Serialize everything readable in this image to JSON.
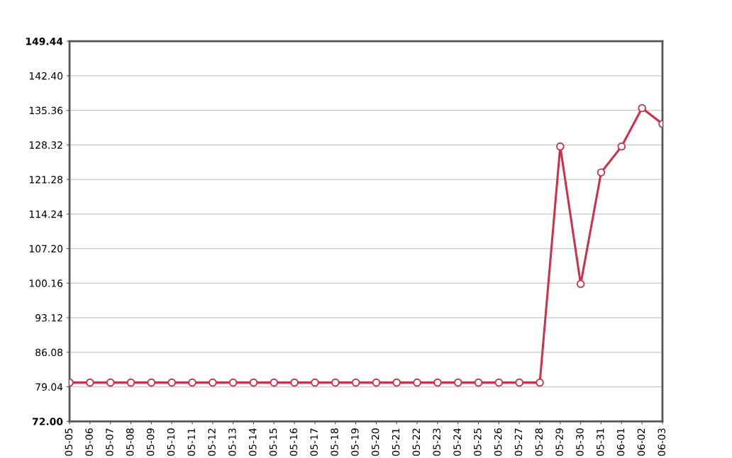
{
  "chart_data": {
    "type": "line",
    "categories": [
      "05-05",
      "05-06",
      "05-07",
      "05-08",
      "05-09",
      "05-10",
      "05-11",
      "05-12",
      "05-13",
      "05-14",
      "05-15",
      "05-16",
      "05-17",
      "05-18",
      "05-19",
      "05-20",
      "05-21",
      "05-22",
      "05-23",
      "05-24",
      "05-25",
      "05-26",
      "05-27",
      "05-28",
      "05-29",
      "05-30",
      "05-31",
      "06-01",
      "06-02",
      "06-03"
    ],
    "series": [
      {
        "color": "#d0304a",
        "values": [
          79.9,
          79.9,
          79.9,
          79.9,
          79.9,
          79.9,
          79.9,
          79.9,
          79.9,
          79.9,
          79.9,
          79.9,
          79.9,
          79.9,
          79.9,
          79.9,
          79.9,
          79.9,
          79.9,
          79.9,
          79.9,
          79.9,
          79.9,
          79.9,
          128.0,
          100.0,
          122.7,
          128.0,
          135.8,
          132.6
        ]
      }
    ],
    "ylim": [
      72.0,
      149.44
    ],
    "yticks": [
      {
        "value": 72.0,
        "label": "72.00"
      },
      {
        "value": 79.04,
        "label": "79.04"
      },
      {
        "value": 86.08,
        "label": "86.08"
      },
      {
        "value": 93.12,
        "label": "93.12"
      },
      {
        "value": 100.16,
        "label": "100.16"
      },
      {
        "value": 107.2,
        "label": "107.20"
      },
      {
        "value": 114.24,
        "label": "114.24"
      },
      {
        "value": 121.28,
        "label": "121.28"
      },
      {
        "value": 128.32,
        "label": "128.32"
      },
      {
        "value": 135.36,
        "label": "135.36"
      },
      {
        "value": 142.4,
        "label": "142.40"
      },
      {
        "value": 149.44,
        "label": "149.44"
      }
    ],
    "grid": "y",
    "marker": "circle",
    "line_style": "solid"
  }
}
